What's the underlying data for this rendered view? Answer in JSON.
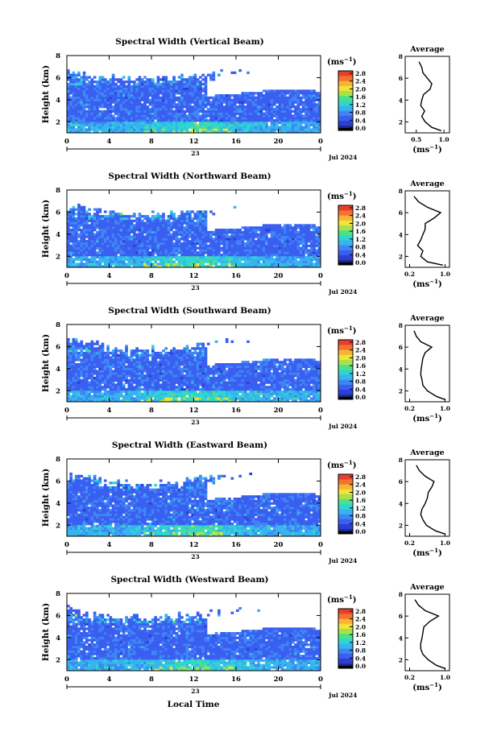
{
  "colors": {
    "scale": [
      "#1a2a8a",
      "#2b3fd6",
      "#3a5ff0",
      "#3f86f5",
      "#36b4ee",
      "#2fd6d0",
      "#4ee089",
      "#a7e24b",
      "#f2e23a",
      "#f7b434",
      "#f3722f",
      "#e83e2c"
    ],
    "missing": "#ffffff",
    "bottom_band": "#000000"
  },
  "panels": [
    {
      "title": "Spectral Width (Vertical Beam)",
      "avg_title": "Average",
      "avg_xticks": [
        "0.5",
        "1.0"
      ],
      "avg_xlim": [
        0.3,
        1.1
      ],
      "profile": "vertical"
    },
    {
      "title": "Spectral Width (Northward Beam)",
      "avg_title": "Average",
      "avg_xticks": [
        "0.2",
        "1.0"
      ],
      "avg_xlim": [
        0.1,
        1.1
      ],
      "profile": "north"
    },
    {
      "title": "Spectral Width (Southward Beam)",
      "avg_title": "Average",
      "avg_xticks": [
        "0.2",
        "1.0"
      ],
      "avg_xlim": [
        0.1,
        1.1
      ],
      "profile": "south"
    },
    {
      "title": "Spectral Width (Eastward Beam)",
      "avg_title": "Average",
      "avg_xticks": [
        "0.2",
        "1.0"
      ],
      "avg_xlim": [
        0.1,
        1.1
      ],
      "profile": "east"
    },
    {
      "title": "Spectral Width (Westward Beam)",
      "avg_title": "Average",
      "avg_xticks": [
        "0.2",
        "1.0"
      ],
      "avg_xlim": [
        0.1,
        1.1
      ],
      "profile": "west"
    }
  ],
  "common": {
    "ylabel": "Height (km)",
    "yticks": [
      "2",
      "4",
      "6",
      "8"
    ],
    "xticks": [
      "0",
      "4",
      "8",
      "12",
      "16",
      "20",
      "0"
    ],
    "day_label": "23",
    "date_label": "Jul 2024",
    "colorbar_unit": "(ms",
    "colorbar_unit_exp": "−1",
    "colorbar_unit_close": ")",
    "colorbar_ticks": [
      "0.0",
      "0.4",
      "0.8",
      "1.2",
      "1.6",
      "2.0",
      "2.4",
      "2.8"
    ],
    "avg_xlabel": "(ms",
    "avg_xlabel_exp": "−1",
    "avg_xlabel_close": ")",
    "xlabel_bottom": "Local Time"
  },
  "chart_data": [
    {
      "type": "heatmap",
      "title": "Spectral Width (Vertical Beam)",
      "xlabel": "",
      "ylabel": "Height (km)",
      "x_range_hours": [
        0,
        24
      ],
      "y_range_km": [
        1,
        8
      ],
      "colorbar_range_ms": [
        0.0,
        2.8
      ],
      "colorbar_ticks": [
        0.0,
        0.4,
        0.8,
        1.2,
        1.6,
        2.0,
        2.4,
        2.8
      ],
      "average_profile": {
        "height_km": [
          1.2,
          1.5,
          2.0,
          2.5,
          3.0,
          3.5,
          4.0,
          4.5,
          5.0,
          5.5,
          6.0,
          6.5,
          7.0,
          7.5
        ],
        "width_ms": [
          0.95,
          0.78,
          0.66,
          0.6,
          0.65,
          0.58,
          0.6,
          0.63,
          0.75,
          0.78,
          0.7,
          0.62,
          0.6,
          0.55
        ]
      }
    },
    {
      "type": "heatmap",
      "title": "Spectral Width (Northward Beam)",
      "ylabel": "Height (km)",
      "x_range_hours": [
        0,
        24
      ],
      "y_range_km": [
        1,
        8
      ],
      "colorbar_range_ms": [
        0.0,
        2.8
      ],
      "average_profile": {
        "height_km": [
          1.2,
          1.5,
          2.0,
          2.5,
          3.0,
          3.5,
          4.0,
          4.5,
          5.0,
          5.5,
          6.0,
          6.5,
          7.0,
          7.5
        ],
        "width_ms": [
          0.95,
          0.6,
          0.45,
          0.5,
          0.38,
          0.45,
          0.5,
          0.55,
          0.55,
          0.75,
          0.9,
          0.6,
          0.4,
          0.3
        ]
      }
    },
    {
      "type": "heatmap",
      "title": "Spectral Width (Southward Beam)",
      "ylabel": "Height (km)",
      "x_range_hours": [
        0,
        24
      ],
      "y_range_km": [
        1,
        8
      ],
      "colorbar_range_ms": [
        0.0,
        2.8
      ],
      "average_profile": {
        "height_km": [
          1.2,
          1.5,
          2.0,
          2.5,
          3.0,
          3.5,
          4.0,
          4.5,
          5.0,
          5.5,
          6.0,
          6.5,
          7.0,
          7.5
        ],
        "width_ms": [
          1.0,
          0.8,
          0.6,
          0.5,
          0.48,
          0.45,
          0.46,
          0.48,
          0.5,
          0.55,
          0.7,
          0.45,
          0.35,
          0.3
        ]
      }
    },
    {
      "type": "heatmap",
      "title": "Spectral Width (Eastward Beam)",
      "ylabel": "Height (km)",
      "x_range_hours": [
        0,
        24
      ],
      "y_range_km": [
        1,
        8
      ],
      "colorbar_range_ms": [
        0.0,
        2.8
      ],
      "average_profile": {
        "height_km": [
          1.2,
          1.5,
          2.0,
          2.5,
          3.0,
          3.5,
          4.0,
          4.5,
          5.0,
          5.5,
          6.0,
          6.5,
          7.0,
          7.5
        ],
        "width_ms": [
          1.0,
          0.78,
          0.58,
          0.5,
          0.45,
          0.48,
          0.55,
          0.6,
          0.62,
          0.7,
          0.75,
          0.55,
          0.42,
          0.35
        ]
      }
    },
    {
      "type": "heatmap",
      "title": "Spectral Width (Westward Beam)",
      "ylabel": "Height (km)",
      "x_range_hours": [
        0,
        24
      ],
      "y_range_km": [
        1,
        8
      ],
      "colorbar_range_ms": [
        0.0,
        2.8
      ],
      "average_profile": {
        "height_km": [
          1.2,
          1.5,
          2.0,
          2.5,
          3.0,
          3.5,
          4.0,
          4.5,
          5.0,
          5.5,
          6.0,
          6.5,
          7.0,
          7.5
        ],
        "width_ms": [
          1.0,
          0.8,
          0.62,
          0.5,
          0.45,
          0.45,
          0.48,
          0.5,
          0.52,
          0.65,
          0.85,
          0.55,
          0.4,
          0.32
        ]
      }
    }
  ]
}
